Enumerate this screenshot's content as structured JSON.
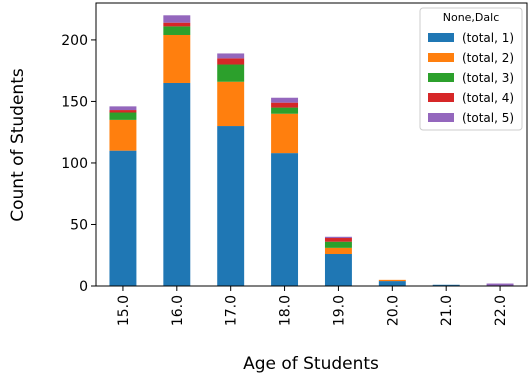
{
  "chart_data": {
    "type": "bar",
    "stacked": true,
    "title": "",
    "xlabel": "Age of Students",
    "ylabel": "Count of Students",
    "categories": [
      "15.0",
      "16.0",
      "17.0",
      "18.0",
      "19.0",
      "20.0",
      "21.0",
      "22.0"
    ],
    "ylim": [
      0,
      230
    ],
    "yticks": [
      0,
      50,
      100,
      150,
      200
    ],
    "ytick_labels": [
      "0",
      "50",
      "100",
      "150",
      "200"
    ],
    "grid": false,
    "legend": {
      "title": "None,Dalc",
      "placement": "top-right"
    },
    "series": [
      {
        "name": "(total, 1)",
        "color": "#1f77b4",
        "values": [
          110,
          165,
          130,
          108,
          26,
          4,
          1,
          0
        ]
      },
      {
        "name": "(total, 2)",
        "color": "#ff7f0e",
        "values": [
          25,
          39,
          36,
          32,
          5,
          1,
          0,
          0
        ]
      },
      {
        "name": "(total, 3)",
        "color": "#2ca02c",
        "values": [
          6,
          7,
          14,
          5,
          5,
          0,
          0,
          0
        ]
      },
      {
        "name": "(total, 4)",
        "color": "#d62728",
        "values": [
          2,
          3,
          5,
          4,
          3,
          0,
          0,
          0
        ]
      },
      {
        "name": "(total, 5)",
        "color": "#9467bd",
        "values": [
          3,
          6,
          4,
          4,
          1,
          0,
          0,
          2
        ]
      }
    ]
  }
}
